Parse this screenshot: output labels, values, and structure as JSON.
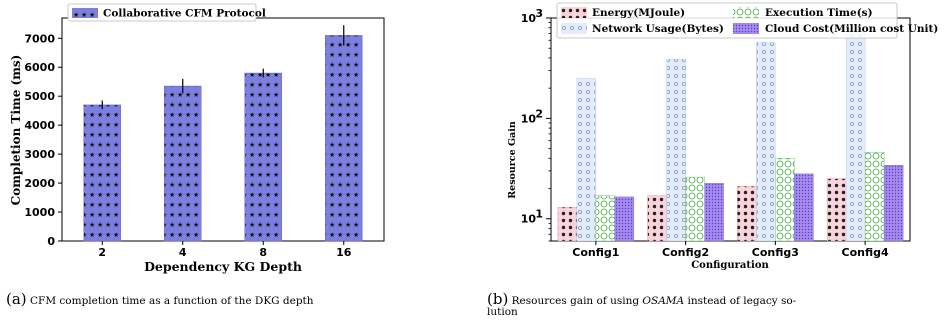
{
  "chart_data": [
    {
      "type": "bar",
      "categories": [
        "2",
        "4",
        "8",
        "16"
      ],
      "series": [
        {
          "name": "Collaborative CFM Protocol",
          "values": [
            4700,
            5350,
            5800,
            7100
          ],
          "errors": [
            150,
            250,
            150,
            350
          ],
          "color": "#7b7fe0"
        }
      ],
      "xlabel": "Dependency KG Depth",
      "ylabel": "Completion Time (ms)",
      "ylim": [
        0,
        7700
      ],
      "yticks": [
        0,
        1000,
        2000,
        3000,
        4000,
        5000,
        6000,
        7000
      ],
      "grid": false,
      "legend": "top-left"
    },
    {
      "type": "bar",
      "categories": [
        "Config1",
        "Config2",
        "Config3",
        "Config4"
      ],
      "series": [
        {
          "name": "Energy(MJoule)",
          "values": [
            13,
            17,
            21,
            25
          ],
          "color": "#f4a6b2",
          "pattern": "dots"
        },
        {
          "name": "Network Usage(Bytes)",
          "values": [
            250,
            390,
            570,
            780
          ],
          "color": "#c9d8f2",
          "pattern": "small-circles"
        },
        {
          "name": "Execution Time(s)",
          "values": [
            17,
            26,
            40,
            46
          ],
          "color": "#8fd08a",
          "pattern": "rings"
        },
        {
          "name": "Cloud Cost(Million cost Unit)",
          "values": [
            16.5,
            22.5,
            28,
            34
          ],
          "color": "#9a7ce8",
          "pattern": "fine-dots"
        }
      ],
      "xlabel": "Configuration",
      "ylabel": "Resource Gain",
      "yscale": "log",
      "ylim": [
        6,
        1000
      ],
      "yticks": [
        10,
        100,
        1000
      ],
      "ytick_labels": [
        "10",
        "10",
        "10"
      ],
      "ytick_exponents": [
        "1",
        "2",
        "3"
      ],
      "grid": false,
      "legend": "top"
    }
  ],
  "captions": {
    "a": {
      "tag": "(a)",
      "text": "CFM completion time as a function of the DKG depth"
    },
    "b": {
      "tag": "(b)",
      "text_prefix": "Resources gain of using ",
      "text_em": "OSAMA",
      "text_suffix": " instead of legacy so-",
      "text_line2": "lution"
    }
  }
}
